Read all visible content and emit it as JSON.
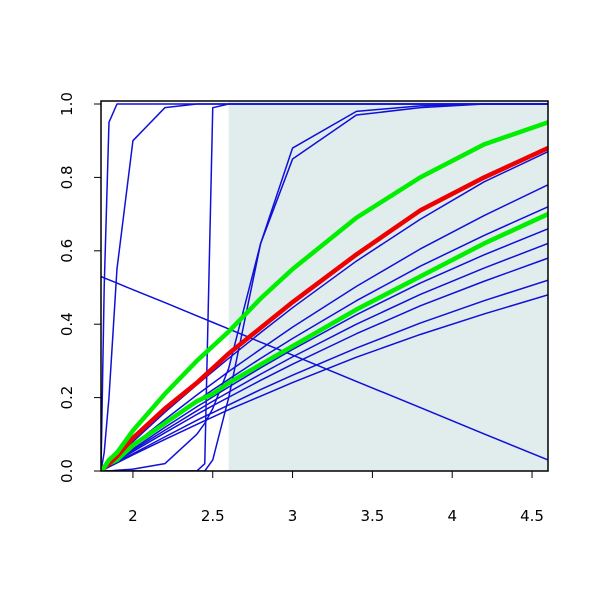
{
  "chart_data": {
    "type": "line",
    "x": [
      1.8,
      1.82,
      1.85,
      1.9,
      2.0,
      2.2,
      2.4,
      2.45,
      2.5,
      2.6,
      2.8,
      3.0,
      3.4,
      3.8,
      4.2,
      4.6
    ],
    "xlim": [
      1.8,
      4.6
    ],
    "xticks": [
      2.0,
      2.5,
      3.0,
      3.5,
      4.0,
      4.5
    ],
    "ylim": [
      0,
      1
    ],
    "yticks": [
      0.0,
      0.2,
      0.4,
      0.6,
      0.8,
      1.0
    ],
    "shaded_xrange": [
      2.6,
      4.6
    ],
    "shade_color": "#e1ecec",
    "series": [
      {
        "color": "#1010d8",
        "width": 1.5,
        "values": [
          0,
          0.5,
          0.95,
          1,
          1,
          1,
          1,
          1,
          1,
          1,
          1,
          1,
          1,
          1,
          1,
          1
        ]
      },
      {
        "color": "#1010d8",
        "width": 1.5,
        "values": [
          0,
          0.05,
          0.2,
          0.55,
          0.9,
          0.99,
          1,
          1,
          1,
          1,
          1,
          1,
          1,
          1,
          1,
          1
        ]
      },
      {
        "color": "#1010d8",
        "width": 1.5,
        "values": [
          0,
          0,
          0,
          0,
          0,
          0,
          0,
          0.02,
          0.99,
          1,
          1,
          1,
          1,
          1,
          1,
          1
        ]
      },
      {
        "color": "#1010d8",
        "width": 1.5,
        "values": [
          0,
          0,
          0,
          0.002,
          0.005,
          0.02,
          0.1,
          0.13,
          0.17,
          0.28,
          0.62,
          0.85,
          0.97,
          0.99,
          1,
          1
        ]
      },
      {
        "color": "#1010d8",
        "width": 1.5,
        "values": [
          0,
          0,
          0,
          0,
          0,
          0,
          0,
          0,
          0.03,
          0.2,
          0.62,
          0.88,
          0.98,
          0.995,
          1,
          1
        ]
      },
      {
        "color": "#1010d8",
        "width": 1.5,
        "values": [
          0.53,
          0.526,
          0.521,
          0.512,
          0.494,
          0.459,
          0.423,
          0.414,
          0.405,
          0.387,
          0.351,
          0.316,
          0.244,
          0.173,
          0.101,
          0.03
        ]
      },
      {
        "color": "#1010d8",
        "width": 1.5,
        "values": [
          0,
          0.004,
          0.011,
          0.022,
          0.044,
          0.086,
          0.127,
          0.137,
          0.147,
          0.167,
          0.204,
          0.241,
          0.31,
          0.372,
          0.428,
          0.48
        ]
      },
      {
        "color": "#1010d8",
        "width": 1.5,
        "values": [
          0,
          0.005,
          0.012,
          0.024,
          0.047,
          0.093,
          0.138,
          0.149,
          0.159,
          0.18,
          0.222,
          0.261,
          0.335,
          0.403,
          0.464,
          0.52
        ]
      },
      {
        "color": "#1010d8",
        "width": 1.5,
        "values": [
          0,
          0.005,
          0.013,
          0.027,
          0.053,
          0.104,
          0.154,
          0.166,
          0.178,
          0.201,
          0.247,
          0.291,
          0.374,
          0.45,
          0.517,
          0.58
        ]
      },
      {
        "color": "#1010d8",
        "width": 1.5,
        "values": [
          0,
          0.006,
          0.014,
          0.029,
          0.057,
          0.111,
          0.164,
          0.177,
          0.19,
          0.215,
          0.264,
          0.311,
          0.4,
          0.481,
          0.553,
          0.62
        ]
      },
      {
        "color": "#1010d8",
        "width": 1.5,
        "values": [
          0,
          0.006,
          0.015,
          0.03,
          0.06,
          0.119,
          0.175,
          0.188,
          0.202,
          0.229,
          0.281,
          0.331,
          0.426,
          0.512,
          0.589,
          0.66
        ]
      },
      {
        "color": "#1010d8",
        "width": 1.5,
        "values": [
          0,
          0.007,
          0.017,
          0.033,
          0.066,
          0.129,
          0.191,
          0.206,
          0.221,
          0.25,
          0.307,
          0.361,
          0.464,
          0.558,
          0.642,
          0.72
        ]
      },
      {
        "color": "#1010d8",
        "width": 1.5,
        "values": [
          0,
          0.007,
          0.018,
          0.036,
          0.071,
          0.14,
          0.207,
          0.223,
          0.239,
          0.271,
          0.332,
          0.392,
          0.503,
          0.605,
          0.696,
          0.78
        ]
      },
      {
        "color": "#1010d8",
        "width": 1.5,
        "values": [
          0,
          0.008,
          0.02,
          0.04,
          0.08,
          0.16,
          0.235,
          0.253,
          0.271,
          0.307,
          0.377,
          0.445,
          0.572,
          0.686,
          0.788,
          0.87
        ]
      },
      {
        "color": "#00ee00",
        "width": 4.5,
        "values": [
          0,
          0.01,
          0.02,
          0.03,
          0.07,
          0.13,
          0.19,
          0.2,
          0.21,
          0.24,
          0.29,
          0.34,
          0.44,
          0.53,
          0.62,
          0.7
        ]
      },
      {
        "color": "#ee0000",
        "width": 4.5,
        "values": [
          0,
          0.01,
          0.02,
          0.04,
          0.09,
          0.17,
          0.24,
          0.26,
          0.28,
          0.32,
          0.39,
          0.46,
          0.59,
          0.71,
          0.8,
          0.88
        ]
      },
      {
        "color": "#00ee00",
        "width": 4.5,
        "values": [
          0,
          0.01,
          0.03,
          0.05,
          0.11,
          0.21,
          0.3,
          0.32,
          0.34,
          0.38,
          0.47,
          0.55,
          0.69,
          0.8,
          0.89,
          0.95
        ]
      }
    ]
  }
}
